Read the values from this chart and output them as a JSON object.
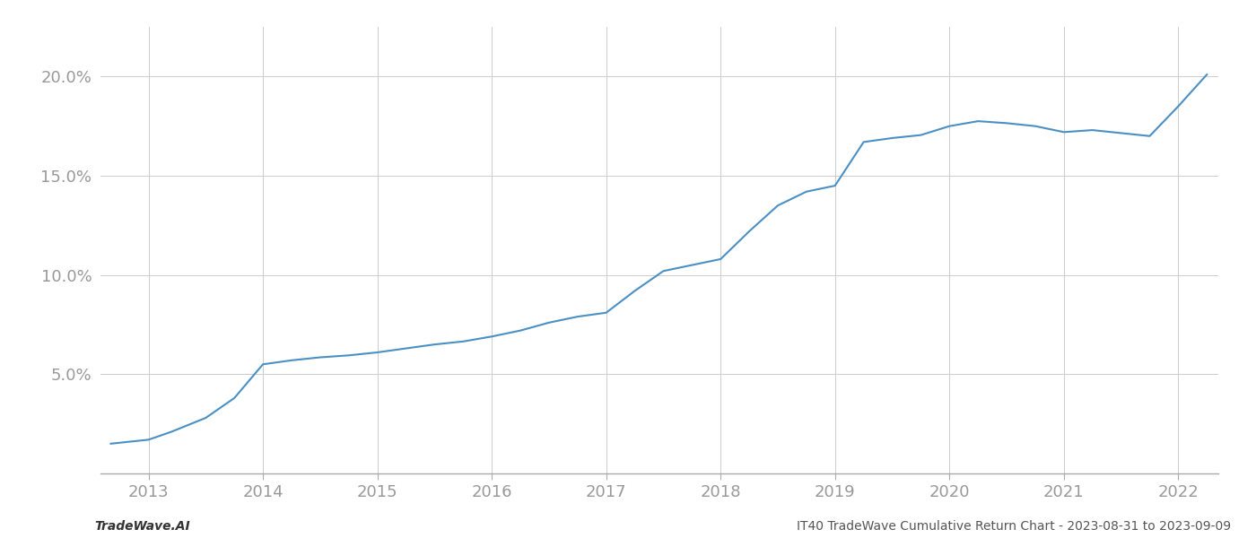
{
  "x_years": [
    2012.67,
    2013.0,
    2013.2,
    2013.5,
    2013.75,
    2014.0,
    2014.25,
    2014.5,
    2014.75,
    2015.0,
    2015.25,
    2015.5,
    2015.75,
    2016.0,
    2016.25,
    2016.5,
    2016.75,
    2017.0,
    2017.25,
    2017.5,
    2017.75,
    2018.0,
    2018.25,
    2018.5,
    2018.75,
    2019.0,
    2019.25,
    2019.5,
    2019.75,
    2020.0,
    2020.25,
    2020.5,
    2020.75,
    2021.0,
    2021.25,
    2021.5,
    2021.75,
    2022.0,
    2022.25
  ],
  "y_values": [
    1.5,
    1.7,
    2.1,
    2.8,
    3.8,
    5.5,
    5.7,
    5.85,
    5.95,
    6.1,
    6.3,
    6.5,
    6.65,
    6.9,
    7.2,
    7.6,
    7.9,
    8.1,
    9.2,
    10.2,
    10.5,
    10.8,
    12.2,
    13.5,
    14.2,
    14.5,
    16.7,
    16.9,
    17.05,
    17.5,
    17.75,
    17.65,
    17.5,
    17.2,
    17.3,
    17.15,
    17.0,
    18.5,
    20.1
  ],
  "line_color": "#4a90c4",
  "line_width": 1.5,
  "footer_left": "TradeWave.AI",
  "footer_right": "IT40 TradeWave Cumulative Return Chart - 2023-08-31 to 2023-09-09",
  "ytick_labels": [
    "5.0%",
    "10.0%",
    "15.0%",
    "20.0%"
  ],
  "ytick_values": [
    5.0,
    10.0,
    15.0,
    20.0
  ],
  "xtick_labels": [
    "2013",
    "2014",
    "2015",
    "2016",
    "2017",
    "2018",
    "2019",
    "2020",
    "2021",
    "2022"
  ],
  "xtick_values": [
    2013,
    2014,
    2015,
    2016,
    2017,
    2018,
    2019,
    2020,
    2021,
    2022
  ],
  "xlim": [
    2012.58,
    2022.35
  ],
  "ylim": [
    0.0,
    22.5
  ],
  "background_color": "#ffffff",
  "grid_color": "#cccccc",
  "tick_color": "#999999",
  "footer_fontsize": 10,
  "tick_fontsize": 13,
  "spine_color": "#aaaaaa"
}
